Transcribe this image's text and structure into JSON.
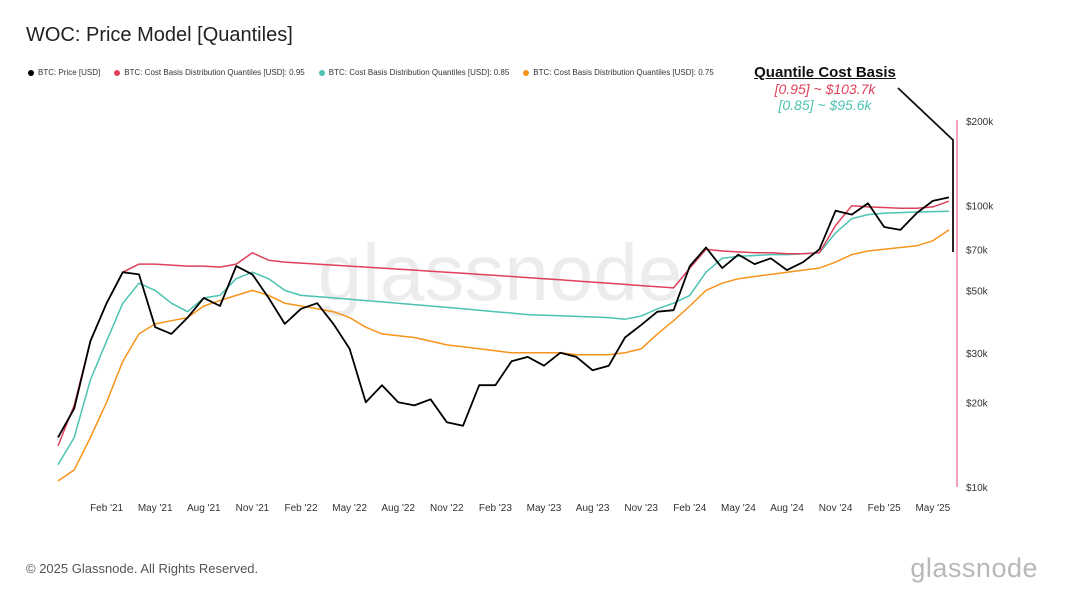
{
  "title": "WOC: Price Model [Quantiles]",
  "footer": "© 2025 Glassnode. All Rights Reserved.",
  "logo": "glassnode",
  "watermark": "glassnode",
  "annotation": {
    "heading": "Quantile Cost Basis",
    "q95": "[0.95] ~ $103.7k",
    "q85": "[0.85] ~ $95.6k"
  },
  "chart_data": {
    "type": "line",
    "title": "WOC: Price Model [Quantiles]",
    "y_scale": "log",
    "ylim": [
      10000,
      200000
    ],
    "y_ticks": [
      {
        "v": 10000,
        "label": "$10k"
      },
      {
        "v": 20000,
        "label": "$20k"
      },
      {
        "v": 30000,
        "label": "$30k"
      },
      {
        "v": 50000,
        "label": "$50k"
      },
      {
        "v": 70000,
        "label": "$70k"
      },
      {
        "v": 100000,
        "label": "$100k"
      },
      {
        "v": 200000,
        "label": "$200k"
      }
    ],
    "x_ticks": [
      "Feb '21",
      "May '21",
      "Aug '21",
      "Nov '21",
      "Feb '22",
      "May '22",
      "Aug '22",
      "Nov '22",
      "Feb '23",
      "May '23",
      "Aug '23",
      "Nov '23",
      "Feb '24",
      "May '24",
      "Aug '24",
      "Nov '24",
      "Feb '25",
      "May '25"
    ],
    "x": [
      "2020-11",
      "2020-12",
      "2021-01",
      "2021-02",
      "2021-03",
      "2021-04",
      "2021-05",
      "2021-06",
      "2021-07",
      "2021-08",
      "2021-09",
      "2021-10",
      "2021-11",
      "2021-12",
      "2022-01",
      "2022-02",
      "2022-03",
      "2022-04",
      "2022-05",
      "2022-06",
      "2022-07",
      "2022-08",
      "2022-09",
      "2022-10",
      "2022-11",
      "2022-12",
      "2023-01",
      "2023-02",
      "2023-03",
      "2023-04",
      "2023-05",
      "2023-06",
      "2023-07",
      "2023-08",
      "2023-09",
      "2023-10",
      "2023-11",
      "2023-12",
      "2024-01",
      "2024-02",
      "2024-03",
      "2024-04",
      "2024-05",
      "2024-06",
      "2024-07",
      "2024-08",
      "2024-09",
      "2024-10",
      "2024-11",
      "2024-12",
      "2025-01",
      "2025-02",
      "2025-03",
      "2025-04",
      "2025-05",
      "2025-06"
    ],
    "legend_position": "top-left",
    "grid": false,
    "series": [
      {
        "name": "BTC: Price [USD]",
        "color": "#000000",
        "values": [
          15000,
          19000,
          33000,
          45000,
          58000,
          57000,
          37000,
          35000,
          40000,
          47000,
          44000,
          61000,
          57000,
          47000,
          38000,
          43000,
          45000,
          38000,
          31000,
          20000,
          23000,
          20000,
          19500,
          20500,
          17000,
          16500,
          23000,
          23000,
          28000,
          29000,
          27000,
          30000,
          29000,
          26000,
          27000,
          34000,
          37700,
          42000,
          42500,
          61000,
          71000,
          60000,
          67000,
          62000,
          65000,
          59000,
          63000,
          70000,
          96000,
          93000,
          102000,
          84000,
          82000,
          94000,
          104000,
          107000
        ]
      },
      {
        "name": "BTC: Cost Basis Distribution Quantiles [USD]: 0.95",
        "color": "#e0405a",
        "values": [
          14000,
          19500,
          33000,
          45000,
          58000,
          62000,
          62000,
          61500,
          61000,
          61000,
          60500,
          62000,
          68000,
          64000,
          63000,
          62500,
          62000,
          61500,
          61000,
          60500,
          60000,
          59500,
          59000,
          58500,
          58000,
          57500,
          57000,
          56500,
          56000,
          55500,
          55000,
          54500,
          54000,
          53500,
          53000,
          52500,
          52000,
          51500,
          51000,
          60000,
          70000,
          69000,
          68500,
          68000,
          68000,
          67500,
          67500,
          68000,
          85000,
          100000,
          99000,
          98500,
          98000,
          98000,
          99000,
          103700
        ]
      },
      {
        "name": "BTC: Cost Basis Distribution Quantiles [USD]: 0.85",
        "color": "#4cc3b2",
        "values": [
          12000,
          15000,
          24000,
          33000,
          45000,
          53000,
          50000,
          45000,
          42000,
          47000,
          48000,
          55000,
          58000,
          55000,
          50000,
          48000,
          47500,
          47000,
          46500,
          46000,
          45500,
          45000,
          44500,
          44000,
          43500,
          43000,
          42500,
          42000,
          41500,
          41000,
          40800,
          40600,
          40400,
          40200,
          40000,
          39500,
          40500,
          43000,
          45000,
          48000,
          58000,
          65000,
          66000,
          66500,
          67000,
          67000,
          67500,
          68000,
          80000,
          90000,
          93000,
          94000,
          94500,
          95000,
          95300,
          95600
        ]
      },
      {
        "name": "BTC: Cost Basis Distribution Quantiles [USD]: 0.75",
        "color": "#f7931a",
        "values": [
          10500,
          11500,
          15000,
          20000,
          28000,
          35000,
          38000,
          39000,
          40000,
          44000,
          46000,
          48000,
          50000,
          48000,
          45000,
          44000,
          43000,
          42000,
          40000,
          37000,
          35000,
          34500,
          34000,
          33000,
          32000,
          31500,
          31000,
          30500,
          30000,
          30000,
          30000,
          30000,
          29500,
          29500,
          29500,
          30000,
          31000,
          35000,
          39000,
          44000,
          50000,
          53000,
          55000,
          56000,
          57000,
          58000,
          59000,
          60000,
          63000,
          67000,
          69000,
          70000,
          71000,
          72000,
          75000,
          82000
        ]
      }
    ]
  }
}
